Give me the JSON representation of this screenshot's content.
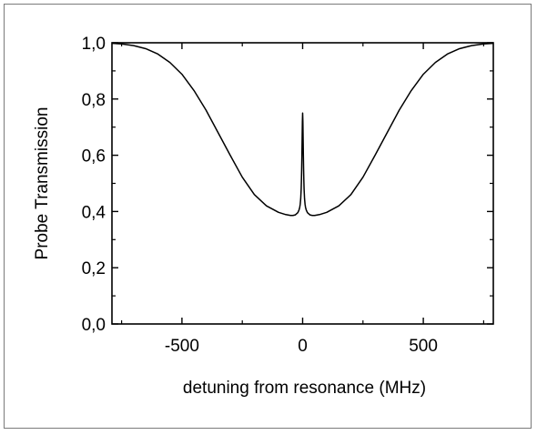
{
  "chart_data": {
    "type": "line",
    "title": "",
    "xlabel": "detuning from resonance (MHz)",
    "ylabel": "Probe Transmission",
    "xlim": [
      -790,
      790
    ],
    "ylim": [
      0.0,
      1.0
    ],
    "xticks": [
      {
        "value": -500,
        "label": "-500"
      },
      {
        "value": 0,
        "label": "0"
      },
      {
        "value": 500,
        "label": "500"
      }
    ],
    "yticks": [
      {
        "value": 0.0,
        "label": "0,0"
      },
      {
        "value": 0.2,
        "label": "0,2"
      },
      {
        "value": 0.4,
        "label": "0,4"
      },
      {
        "value": 0.6,
        "label": "0,6"
      },
      {
        "value": 0.8,
        "label": "0,8"
      },
      {
        "value": 1.0,
        "label": "1,0"
      }
    ],
    "grid": false,
    "legend": "none",
    "line_color": "#000000",
    "series": [
      {
        "x": [
          -790,
          -750,
          -700,
          -650,
          -600,
          -550,
          -500,
          -450,
          -400,
          -350,
          -300,
          -250,
          -200,
          -150,
          -100,
          -70,
          -50,
          -40,
          -30,
          -20,
          -15,
          -12,
          -10,
          -8,
          -6,
          -5,
          -4,
          -3,
          -2,
          -1,
          0,
          1,
          2,
          3,
          4,
          5,
          6,
          8,
          10,
          12,
          15,
          20,
          30,
          40,
          50,
          70,
          100,
          150,
          200,
          250,
          300,
          350,
          400,
          450,
          500,
          550,
          600,
          650,
          700,
          750,
          790
        ],
        "y": [
          0.998,
          0.996,
          0.99,
          0.979,
          0.96,
          0.93,
          0.888,
          0.83,
          0.76,
          0.68,
          0.6,
          0.522,
          0.46,
          0.42,
          0.397,
          0.389,
          0.386,
          0.386,
          0.388,
          0.396,
          0.405,
          0.415,
          0.426,
          0.445,
          0.48,
          0.51,
          0.55,
          0.6,
          0.66,
          0.72,
          0.75,
          0.72,
          0.66,
          0.6,
          0.55,
          0.51,
          0.48,
          0.445,
          0.426,
          0.415,
          0.405,
          0.396,
          0.388,
          0.386,
          0.386,
          0.389,
          0.397,
          0.42,
          0.46,
          0.522,
          0.6,
          0.68,
          0.76,
          0.83,
          0.888,
          0.93,
          0.96,
          0.979,
          0.99,
          0.996,
          0.998
        ]
      }
    ]
  }
}
